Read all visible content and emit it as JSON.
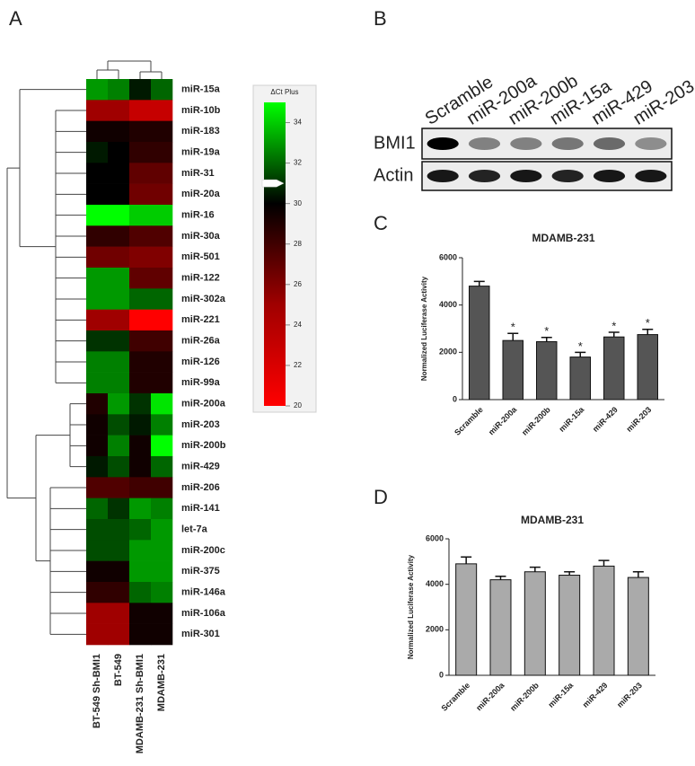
{
  "chart_data": [
    {
      "type": "heatmap",
      "panel": "A",
      "rows": [
        "miR-15a",
        "miR-10b",
        "miR-183",
        "miR-19a",
        "miR-31",
        "miR-20a",
        "miR-16",
        "miR-30a",
        "miR-501",
        "miR-122",
        "miR-302a",
        "miR-221",
        "miR-26a",
        "miR-126",
        "miR-99a",
        "miR-200a",
        "miR-203",
        "miR-200b",
        "miR-429",
        "miR-206",
        "miR-141",
        "let-7a",
        "miR-200c",
        "miR-375",
        "miR-146a",
        "miR-106a",
        "miR-301"
      ],
      "columns": [
        "BT-549 Sh-BMI1",
        "BT-549",
        "MDAMB-231 Sh-BMI1",
        "MDAMB-231"
      ],
      "values": [
        [
          33,
          32.5,
          30.5,
          32
        ],
        [
          25,
          25,
          23,
          23
        ],
        [
          29.5,
          29.5,
          29,
          29
        ],
        [
          30.5,
          30,
          28.5,
          28.5
        ],
        [
          30,
          30,
          27,
          27
        ],
        [
          30,
          30,
          26.5,
          26.5
        ],
        [
          35,
          35,
          34,
          34
        ],
        [
          28.5,
          28.5,
          27.5,
          27.5
        ],
        [
          26.5,
          26.5,
          26,
          26
        ],
        [
          33,
          33,
          27,
          27
        ],
        [
          33,
          33,
          32,
          32
        ],
        [
          25,
          25,
          20,
          20
        ],
        [
          31,
          31,
          28,
          28
        ],
        [
          32.5,
          32.5,
          29,
          29
        ],
        [
          32.5,
          32.5,
          29,
          29
        ],
        [
          29,
          33,
          31,
          34.5
        ],
        [
          29.5,
          31.5,
          30.5,
          32.5
        ],
        [
          29.5,
          32.5,
          29.5,
          35
        ],
        [
          30.5,
          31.5,
          29.5,
          32
        ],
        [
          27.5,
          27.5,
          28,
          28
        ],
        [
          32,
          31,
          33,
          32.5
        ],
        [
          31.5,
          31.5,
          32,
          33
        ],
        [
          31.5,
          31.5,
          33,
          33
        ],
        [
          29.5,
          29.5,
          33,
          33
        ],
        [
          28.5,
          28.5,
          32,
          32.5
        ],
        [
          25,
          25,
          29.5,
          29.5
        ],
        [
          25,
          25,
          29.5,
          29.5
        ]
      ],
      "colorbar_title": "ΔCt Plus",
      "zlim": [
        20,
        35
      ],
      "zticks": [
        20,
        22,
        24,
        26,
        28,
        30,
        32,
        34
      ],
      "colors": [
        "#ff0000",
        "#a00000",
        "#000000",
        "#00ff00"
      ],
      "colorbar_marker": 31
    },
    {
      "type": "blot",
      "panel": "B",
      "lanes": [
        "Scramble",
        "miR-200a",
        "miR-200b",
        "miR-15a",
        "miR-429",
        "miR-203"
      ],
      "rows": [
        "BMI1",
        "Actin"
      ],
      "band_intensity": [
        [
          1,
          0.45,
          0.45,
          0.5,
          0.55,
          0.4
        ],
        [
          0.9,
          0.85,
          0.9,
          0.85,
          0.9,
          0.9
        ]
      ]
    },
    {
      "type": "bar",
      "panel": "C",
      "title": "MDAMB-231",
      "ylabel": "Normalized Luciferase Activity",
      "categories": [
        "Scramble",
        "miR-200a",
        "miR-200b",
        "miR-15a",
        "miR-429",
        "miR-203"
      ],
      "values": [
        4800,
        2500,
        2450,
        1800,
        2650,
        2750
      ],
      "errors": [
        200,
        300,
        180,
        200,
        200,
        220
      ],
      "significance": [
        null,
        "*",
        "*",
        "*",
        "*",
        "*"
      ],
      "color": "#555555",
      "ylim": [
        0,
        6000
      ],
      "yticks": [
        0,
        2000,
        4000,
        6000
      ]
    },
    {
      "type": "bar",
      "panel": "D",
      "title": "MDAMB-231",
      "ylabel": "Normalized Luciferase Activity",
      "categories": [
        "Scramble",
        "miR-200a",
        "miR-200b",
        "miR-15a",
        "miR-429",
        "miR-203"
      ],
      "values": [
        4900,
        4200,
        4550,
        4400,
        4800,
        4300
      ],
      "errors": [
        300,
        150,
        200,
        150,
        250,
        250
      ],
      "color": "#aaaaaa",
      "ylim": [
        0,
        6000
      ],
      "yticks": [
        0,
        2000,
        4000,
        6000
      ]
    }
  ]
}
